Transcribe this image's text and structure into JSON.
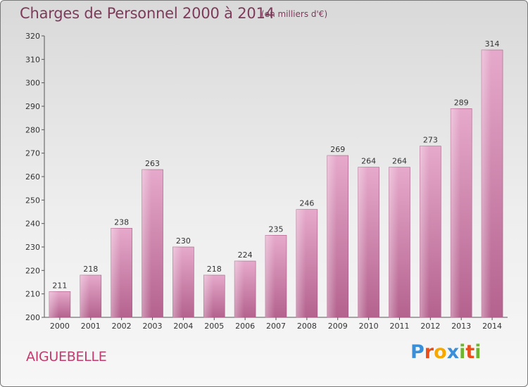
{
  "title": "Charges de Personnel 2000 à 2014",
  "subtitle": "(en milliers d'€)",
  "place": "AIGUEBELLE",
  "logo": {
    "letters": [
      "P",
      "r",
      "o",
      "x",
      "i",
      "t",
      "i"
    ],
    "colors": [
      "#3a8fd8",
      "#e94e1b",
      "#f6a800",
      "#3a8fd8",
      "#6cb52d",
      "#e94e1b",
      "#6cb52d"
    ]
  },
  "chart_data": {
    "type": "bar",
    "categories": [
      "2000",
      "2001",
      "2002",
      "2003",
      "2004",
      "2005",
      "2006",
      "2007",
      "2008",
      "2009",
      "2010",
      "2011",
      "2012",
      "2013",
      "2014"
    ],
    "values": [
      211,
      218,
      238,
      263,
      230,
      218,
      224,
      235,
      246,
      269,
      264,
      264,
      273,
      289,
      314
    ],
    "ylim": [
      200,
      320
    ],
    "yticks": [
      200,
      210,
      220,
      230,
      240,
      250,
      260,
      270,
      280,
      290,
      300,
      310,
      320
    ],
    "bar_color": "#c4709e",
    "grid": false,
    "xlabel": "",
    "ylabel": ""
  }
}
